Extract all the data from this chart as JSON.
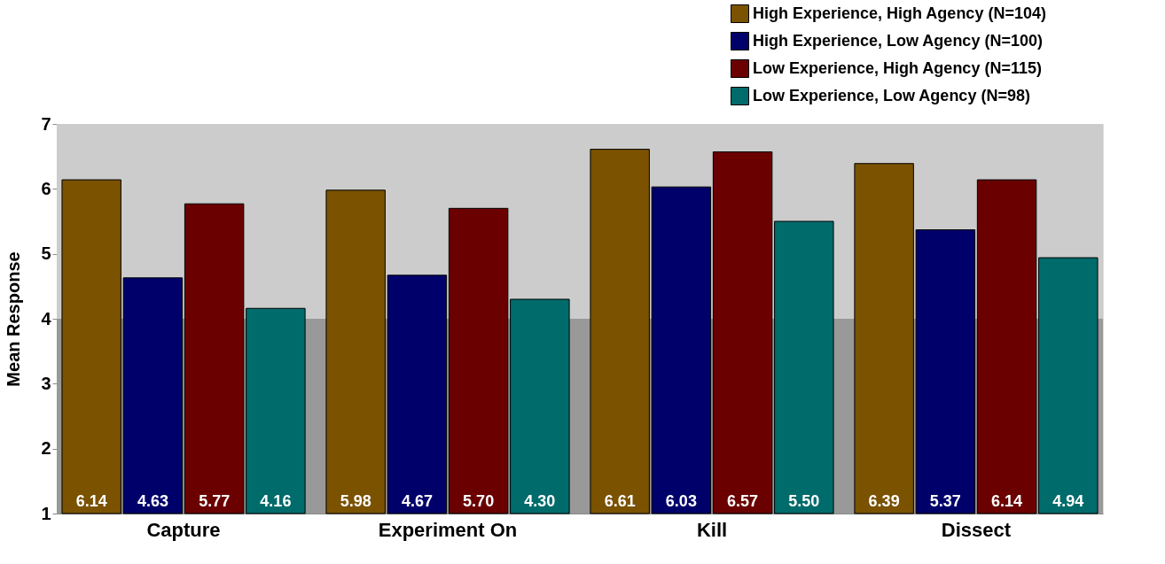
{
  "chart_data": {
    "type": "bar",
    "ylabel": "Mean Response",
    "categories": [
      "Capture",
      "Experiment On",
      "Kill",
      "Dissect"
    ],
    "series": [
      {
        "name": "High Experience, High Agency (N=104)",
        "color": "#7a5200",
        "values": [
          6.14,
          5.98,
          6.61,
          6.39
        ],
        "value_labels": [
          "6.14",
          "5.98",
          "6.61",
          "6.39"
        ]
      },
      {
        "name": "High Experience, Low Agency (N=100)",
        "color": "#00006b",
        "values": [
          4.63,
          4.67,
          6.03,
          5.37
        ],
        "value_labels": [
          "4.63",
          "4.67",
          "6.03",
          "5.37"
        ]
      },
      {
        "name": "Low Experience, High Agency (N=115)",
        "color": "#6b0000",
        "values": [
          5.77,
          5.7,
          6.57,
          6.14
        ],
        "value_labels": [
          "5.77",
          "5.70",
          "6.57",
          "6.14"
        ]
      },
      {
        "name": "Low Experience, Low Agency (N=98)",
        "color": "#006b6b",
        "values": [
          4.16,
          4.3,
          5.5,
          4.94
        ],
        "value_labels": [
          "4.16",
          "4.30",
          "5.50",
          "4.94"
        ]
      }
    ],
    "ylim": [
      1,
      7
    ],
    "yticks": [
      1,
      2,
      3,
      4,
      5,
      6,
      7
    ],
    "legend": "top right",
    "bands": [
      {
        "axis": "y",
        "from": 1,
        "to": 4,
        "color": "#999999"
      },
      {
        "axis": "y",
        "from": 4,
        "to": 7,
        "color": "#cccccc"
      }
    ]
  }
}
